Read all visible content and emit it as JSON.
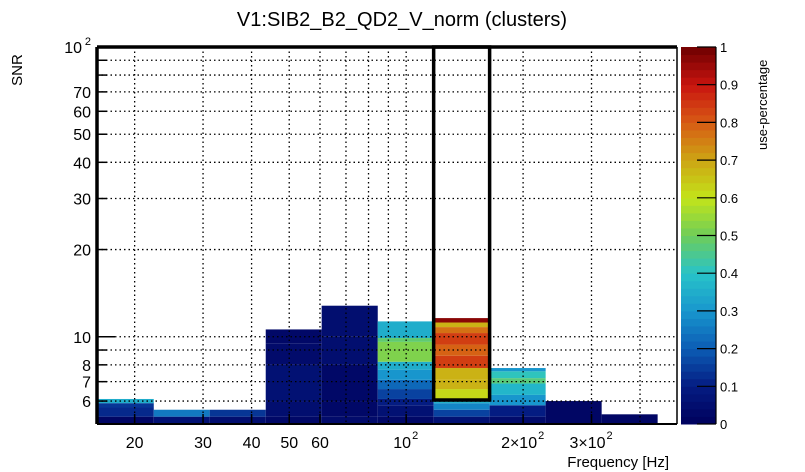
{
  "chart_data": {
    "type": "heatmap",
    "title": "V1:SIB2_B2_QD2_V_norm (clusters)",
    "xlabel": "Frequency [Hz]",
    "ylabel": "SNR",
    "colorbar_label": "use-percentage",
    "x_scale": "log",
    "y_scale": "log",
    "xlim": [
      16,
      498
    ],
    "ylim": [
      5,
      100
    ],
    "grid": true,
    "x_ticks": [
      {
        "value": 20,
        "label": "20"
      },
      {
        "value": 30,
        "label": "30"
      },
      {
        "value": 40,
        "label": "40"
      },
      {
        "value": 50,
        "label": "50"
      },
      {
        "value": 60,
        "label": "60"
      },
      {
        "value": 100,
        "label": "10",
        "sup": "2"
      },
      {
        "value": 200,
        "label": "2×10",
        "sup": "2"
      },
      {
        "value": 300,
        "label": "3×10",
        "sup": "2"
      }
    ],
    "x_minor_grid": [
      70,
      80,
      90,
      400
    ],
    "y_ticks": [
      {
        "value": 100,
        "label": "10",
        "sup": "2"
      },
      {
        "value": 70,
        "label": "70"
      },
      {
        "value": 60,
        "label": "60"
      },
      {
        "value": 50,
        "label": "50"
      },
      {
        "value": 40,
        "label": "40"
      },
      {
        "value": 30,
        "label": "30"
      },
      {
        "value": 20,
        "label": "20"
      },
      {
        "value": 10,
        "label": "10"
      },
      {
        "value": 8,
        "label": "8"
      },
      {
        "value": 7,
        "label": "7"
      },
      {
        "value": 6,
        "label": "6"
      }
    ],
    "y_unlabeled_ticks": [
      90,
      80,
      9
    ],
    "colorbar_ticks": [
      "0",
      "0.1",
      "0.2",
      "0.3",
      "0.4",
      "0.5",
      "0.6",
      "0.7",
      "0.8",
      "0.9",
      "1"
    ],
    "colorbar_range": [
      0,
      1
    ],
    "bin_edges_hz": [
      16.1,
      22.4,
      31.2,
      43.5,
      60.6,
      84.5,
      117.7,
      164.0,
      228.6,
      318.6,
      444.0
    ],
    "columns": [
      {
        "f_lo": 16.1,
        "f_hi": 22.4,
        "cells": [
          [
            5.0,
            5.3,
            0.02
          ],
          [
            5.3,
            5.7,
            0.12
          ],
          [
            5.7,
            5.9,
            0.14
          ],
          [
            5.9,
            6.1,
            0.35
          ]
        ]
      },
      {
        "f_lo": 22.4,
        "f_hi": 31.2,
        "cells": [
          [
            5.0,
            5.3,
            0.06
          ],
          [
            5.3,
            5.6,
            0.25
          ]
        ]
      },
      {
        "f_lo": 31.2,
        "f_hi": 43.5,
        "cells": [
          [
            5.0,
            5.3,
            0.05
          ],
          [
            5.3,
            5.6,
            0.14
          ]
        ]
      },
      {
        "f_lo": 43.5,
        "f_hi": 60.6,
        "cells": [
          [
            5.0,
            5.3,
            0.03
          ],
          [
            5.3,
            6.0,
            0.05
          ],
          [
            6.0,
            8.0,
            0.06
          ],
          [
            8.0,
            9.5,
            0.04
          ],
          [
            9.5,
            10.6,
            0.03
          ]
        ]
      },
      {
        "f_lo": 60.6,
        "f_hi": 84.5,
        "cells": [
          [
            5.0,
            5.3,
            0.04
          ],
          [
            5.3,
            6.0,
            0.03
          ],
          [
            6.0,
            8.0,
            0.03
          ],
          [
            8.0,
            10.0,
            0.05
          ],
          [
            10.0,
            12.8,
            0.05
          ]
        ]
      },
      {
        "f_lo": 84.5,
        "f_hi": 117.7,
        "cells": [
          [
            5.0,
            5.3,
            0.03
          ],
          [
            5.3,
            5.8,
            0.06
          ],
          [
            5.8,
            6.1,
            0.1
          ],
          [
            6.1,
            6.6,
            0.16
          ],
          [
            6.6,
            7.1,
            0.22
          ],
          [
            7.1,
            7.7,
            0.3
          ],
          [
            7.7,
            8.2,
            0.35
          ],
          [
            8.2,
            9.6,
            0.52
          ],
          [
            9.6,
            9.9,
            0.48
          ],
          [
            9.9,
            11.3,
            0.35
          ]
        ]
      },
      {
        "f_lo": 117.7,
        "f_hi": 164.0,
        "cells": [
          [
            5.0,
            5.3,
            0.06
          ],
          [
            5.3,
            5.6,
            0.16
          ],
          [
            5.6,
            5.9,
            0.27
          ],
          [
            5.9,
            6.1,
            0.36
          ],
          [
            6.1,
            6.6,
            0.62
          ],
          [
            6.6,
            7.1,
            0.68
          ],
          [
            7.1,
            7.8,
            0.68
          ],
          [
            7.8,
            8.6,
            0.84
          ],
          [
            8.6,
            9.4,
            0.79
          ],
          [
            9.4,
            10.3,
            0.84
          ],
          [
            10.3,
            10.8,
            0.77
          ],
          [
            10.8,
            11.2,
            0.68
          ],
          [
            11.2,
            11.6,
            0.97
          ]
        ]
      },
      {
        "f_lo": 164.0,
        "f_hi": 228.6,
        "cells": [
          [
            5.0,
            5.3,
            0.04
          ],
          [
            5.3,
            5.8,
            0.1
          ],
          [
            5.8,
            6.3,
            0.3
          ],
          [
            6.3,
            6.9,
            0.37
          ],
          [
            6.9,
            7.2,
            0.47
          ],
          [
            7.2,
            7.6,
            0.41
          ],
          [
            7.6,
            7.8,
            0.3
          ]
        ]
      },
      {
        "f_lo": 228.6,
        "f_hi": 318.6,
        "cells": [
          [
            5.0,
            6.0,
            0.02
          ]
        ]
      },
      {
        "f_lo": 318.6,
        "f_hi": 444.0,
        "cells": [
          [
            5.0,
            5.4,
            0.02
          ]
        ]
      }
    ],
    "highlight_box": {
      "f_lo": 117.7,
      "f_hi": 164.0,
      "snr_lo": 6.05,
      "snr_hi": 100
    }
  }
}
